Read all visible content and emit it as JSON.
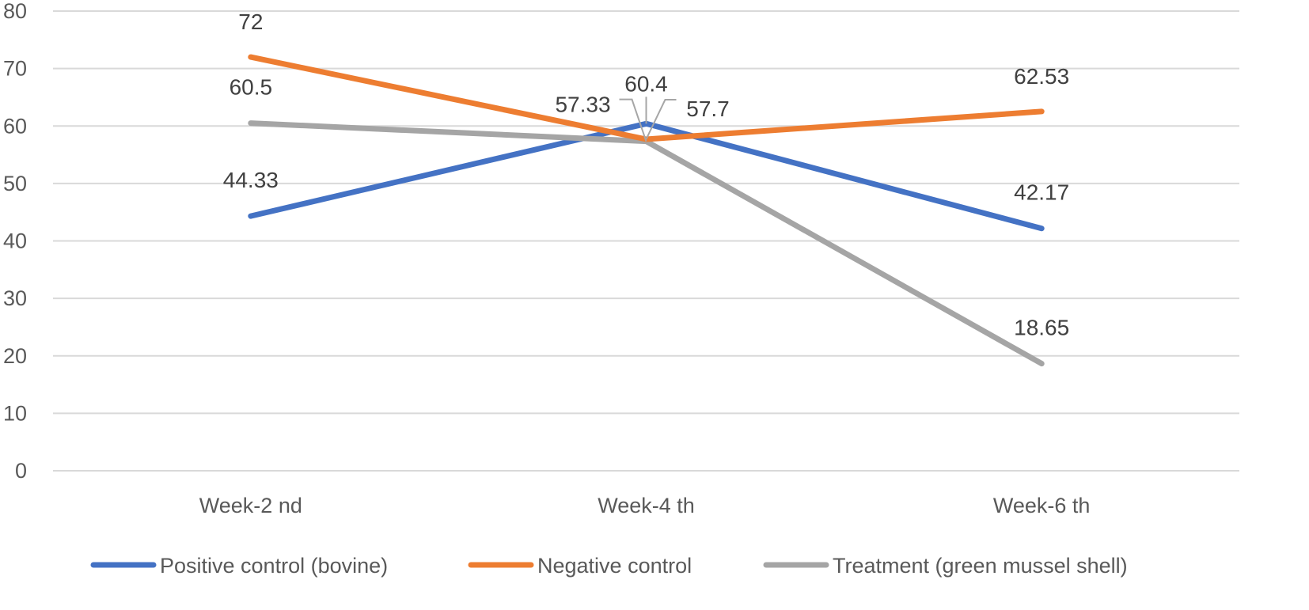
{
  "chart_data": {
    "type": "line",
    "categories": [
      "Week-2 nd",
      "Week-4 th",
      "Week-6 th"
    ],
    "ylim": [
      0,
      80
    ],
    "yticks": [
      0,
      10,
      20,
      30,
      40,
      50,
      60,
      70,
      80
    ],
    "grid": true,
    "legend_position": "bottom",
    "data_labels": true,
    "series": [
      {
        "name": "Positive control (bovine)",
        "color": "#4472C4",
        "values": [
          44.33,
          60.4,
          42.17
        ],
        "labels": [
          "44.33",
          "60.4",
          "42.17"
        ]
      },
      {
        "name": "Negative control",
        "color": "#ED7D31",
        "values": [
          72,
          57.7,
          62.53
        ],
        "labels": [
          "72",
          "57.7",
          "62.53"
        ]
      },
      {
        "name": "Treatment (green mussel shell)",
        "color": "#A5A5A5",
        "values": [
          60.5,
          57.33,
          18.65
        ],
        "labels": [
          "60.5",
          "57.33",
          "18.65"
        ]
      }
    ]
  }
}
